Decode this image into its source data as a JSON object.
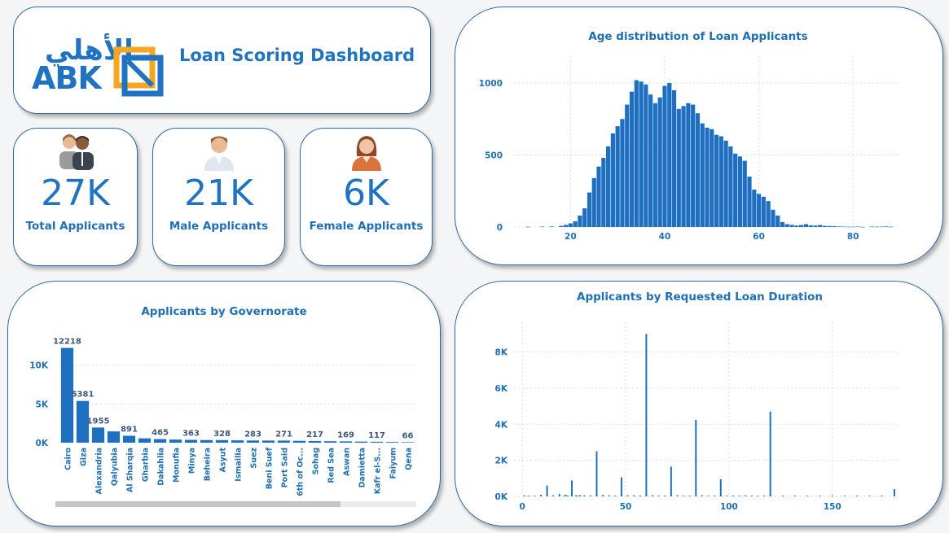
{
  "header": {
    "title": "Loan Scoring Dashboard",
    "logo_latin": "ABK",
    "logo_arabic": "الأهلي"
  },
  "kpis": {
    "total": {
      "value": "27K",
      "label": "Total Applicants"
    },
    "male": {
      "value": "21K",
      "label": "Male Applicants"
    },
    "female": {
      "value": "6K",
      "label": "Female Applicants"
    }
  },
  "colors": {
    "accent": "#1f73c0",
    "bar": "#1f6fc0",
    "border": "#2b6aa8",
    "logo_orange": "#f5a623"
  },
  "chart_data": [
    {
      "id": "age",
      "type": "bar",
      "title": "Age distribution of Loan Applicants",
      "x_ticks": [
        20,
        40,
        60,
        80
      ],
      "y_ticks": [
        0,
        500,
        1000
      ],
      "xlim": [
        8,
        90
      ],
      "ylim": [
        0,
        1130
      ],
      "grid": true,
      "x": [
        11,
        14,
        16,
        18,
        19,
        20,
        21,
        22,
        23,
        24,
        25,
        26,
        27,
        28,
        29,
        30,
        31,
        32,
        33,
        34,
        35,
        36,
        37,
        38,
        39,
        40,
        41,
        42,
        43,
        44,
        45,
        46,
        47,
        48,
        49,
        50,
        51,
        52,
        53,
        54,
        55,
        56,
        57,
        58,
        59,
        60,
        61,
        62,
        63,
        64,
        65,
        66,
        67,
        68,
        69,
        70,
        71,
        72,
        73,
        74,
        75,
        76,
        77,
        78,
        79,
        80,
        81,
        82,
        84,
        85,
        86,
        87,
        88
      ],
      "values": [
        2,
        3,
        4,
        8,
        15,
        25,
        40,
        80,
        130,
        240,
        340,
        420,
        480,
        560,
        650,
        700,
        750,
        850,
        940,
        1020,
        1010,
        990,
        920,
        860,
        900,
        980,
        1000,
        950,
        820,
        840,
        860,
        850,
        790,
        720,
        690,
        680,
        640,
        630,
        600,
        560,
        510,
        490,
        460,
        350,
        260,
        230,
        210,
        180,
        120,
        80,
        35,
        20,
        15,
        10,
        14,
        20,
        12,
        10,
        14,
        8,
        7,
        6,
        4,
        3,
        2,
        2,
        3,
        1,
        3,
        2,
        3,
        4,
        2
      ]
    },
    {
      "id": "governorate",
      "type": "bar",
      "title": "Applicants by Governorate",
      "categories": [
        "Cairo",
        "Giza",
        "Alexandria",
        "Qalyubia",
        "Al Sharqia",
        "Gharbia",
        "Dakahlia",
        "Monufia",
        "Minya",
        "Beheira",
        "Asyut",
        "Ismailia",
        "Suez",
        "Beni Suef",
        "Port Said",
        "6th of Oc...",
        "Sohag",
        "Red Sea",
        "Aswan",
        "Damietta",
        "Kafr el-S...",
        "Faiyum",
        "Qena"
      ],
      "values": [
        12218,
        5381,
        1955,
        1450,
        891,
        560,
        465,
        400,
        363,
        340,
        328,
        300,
        283,
        275,
        271,
        240,
        217,
        190,
        169,
        140,
        117,
        90,
        66
      ],
      "labels": [
        "12218",
        "5381",
        "1955",
        "",
        "891",
        "",
        "465",
        "",
        "363",
        "",
        "328",
        "",
        "283",
        "",
        "271",
        "",
        "217",
        "",
        "169",
        "",
        "117",
        "",
        "66"
      ],
      "y_ticks": [
        0,
        5000,
        10000
      ],
      "y_tick_labels": [
        "0K",
        "5K",
        "10K"
      ],
      "ylim": [
        0,
        12800
      ]
    },
    {
      "id": "duration",
      "type": "bar",
      "title": "Applicants by Requested Loan Duration",
      "x_ticks": [
        0,
        50,
        100,
        150
      ],
      "y_ticks": [
        0,
        2000,
        4000,
        6000,
        8000
      ],
      "y_tick_labels": [
        "0K",
        "2K",
        "4K",
        "6K",
        "8K"
      ],
      "xlim": [
        -4,
        182
      ],
      "ylim": [
        0,
        9200
      ],
      "x": [
        1,
        3,
        6,
        9,
        12,
        15,
        18,
        20,
        21,
        22,
        24,
        26,
        27,
        28,
        30,
        33,
        36,
        39,
        42,
        45,
        48,
        51,
        54,
        57,
        60,
        63,
        66,
        69,
        72,
        75,
        78,
        81,
        84,
        87,
        90,
        93,
        96,
        99,
        102,
        105,
        108,
        111,
        114,
        117,
        120,
        126,
        132,
        138,
        144,
        150,
        156,
        162,
        168,
        174,
        180
      ],
      "values": [
        60,
        40,
        30,
        90,
        600,
        60,
        130,
        40,
        90,
        40,
        880,
        60,
        40,
        70,
        60,
        60,
        2500,
        80,
        60,
        40,
        1050,
        60,
        60,
        50,
        9000,
        60,
        50,
        40,
        1650,
        60,
        40,
        40,
        4250,
        60,
        40,
        40,
        950,
        40,
        40,
        40,
        60,
        40,
        40,
        40,
        4700,
        40,
        40,
        40,
        40,
        40,
        40,
        40,
        40,
        40,
        400
      ]
    }
  ]
}
